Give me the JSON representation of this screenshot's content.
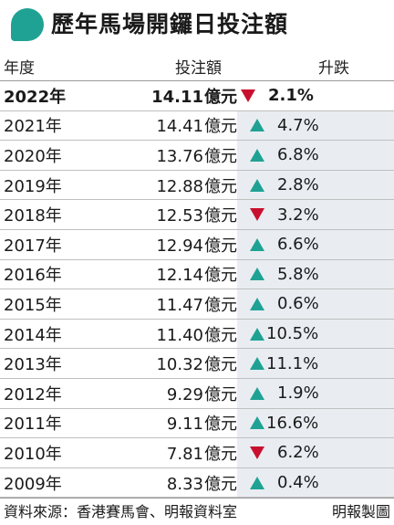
{
  "header": {
    "title": "歷年馬場開鑼日投注額"
  },
  "table": {
    "columns": [
      "年度",
      "投注額",
      "升跌"
    ],
    "unit": "億元",
    "rows": [
      {
        "year": "2022年",
        "amount": "14.11",
        "dir": "down",
        "change": "2.1%"
      },
      {
        "year": "2021年",
        "amount": "14.41",
        "dir": "up",
        "change": "4.7%"
      },
      {
        "year": "2020年",
        "amount": "13.76",
        "dir": "up",
        "change": "6.8%"
      },
      {
        "year": "2019年",
        "amount": "12.88",
        "dir": "up",
        "change": "2.8%"
      },
      {
        "year": "2018年",
        "amount": "12.53",
        "dir": "down",
        "change": "3.2%"
      },
      {
        "year": "2017年",
        "amount": "12.94",
        "dir": "up",
        "change": "6.6%"
      },
      {
        "year": "2016年",
        "amount": "12.14",
        "dir": "up",
        "change": "5.8%"
      },
      {
        "year": "2015年",
        "amount": "11.47",
        "dir": "up",
        "change": "0.6%"
      },
      {
        "year": "2014年",
        "amount": "11.40",
        "dir": "up",
        "change": "10.5%"
      },
      {
        "year": "2013年",
        "amount": "10.32",
        "dir": "up",
        "change": "11.1%"
      },
      {
        "year": "2012年",
        "amount": "9.29",
        "dir": "up",
        "change": "1.9%"
      },
      {
        "year": "2011年",
        "amount": "9.11",
        "dir": "up",
        "change": "16.6%"
      },
      {
        "year": "2010年",
        "amount": "7.81",
        "dir": "down",
        "change": "6.2%"
      },
      {
        "year": "2009年",
        "amount": "8.33",
        "dir": "up",
        "change": "0.4%"
      }
    ]
  },
  "footer": {
    "source": "資料來源：香港賽馬會、明報資料室",
    "credit": "明報製圖"
  },
  "colors": {
    "up": "#1fa294",
    "down": "#c8102e",
    "accent": "#1fa294",
    "shade": "#e9edf2"
  }
}
